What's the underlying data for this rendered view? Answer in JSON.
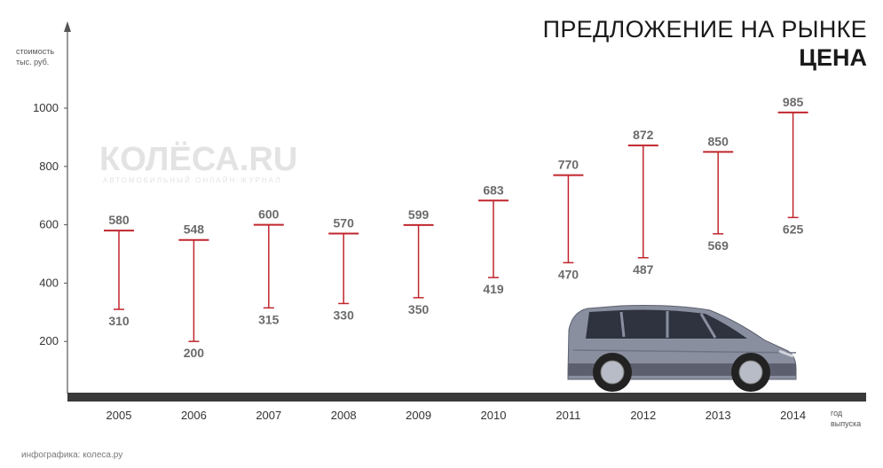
{
  "title": "ПРЕДЛОЖЕНИЕ НА РЫНКЕ",
  "subtitle": "ЦЕНА",
  "ylabel_line1": "стоимость",
  "ylabel_line2": "тыс. руб.",
  "xlabel_line1": "год",
  "xlabel_line2": "выпуска",
  "source": "инфографика: колеса.ру",
  "watermark": {
    "logo": "КОЛЁСА.RU",
    "tagline": "АВТОМОБИЛЬНЫЙ ОНЛАЙН-ЖУРНАЛ"
  },
  "colors": {
    "range_line": "#c0262d",
    "label": "#6b6b6b",
    "axis": "#555555",
    "ground": "#3a3a3a",
    "car_body": "#8a8fa0"
  },
  "chart_data": {
    "type": "range",
    "categories": [
      "2005",
      "2006",
      "2007",
      "2008",
      "2009",
      "2010",
      "2011",
      "2012",
      "2013",
      "2014"
    ],
    "series": [
      {
        "name": "max",
        "values": [
          580,
          548,
          600,
          570,
          599,
          683,
          770,
          872,
          850,
          985
        ]
      },
      {
        "name": "min",
        "values": [
          310,
          200,
          315,
          330,
          350,
          419,
          470,
          487,
          569,
          625
        ]
      }
    ],
    "y_ticks": [
      200,
      400,
      600,
      800,
      1000
    ],
    "ylim": [
      0,
      1050
    ]
  }
}
